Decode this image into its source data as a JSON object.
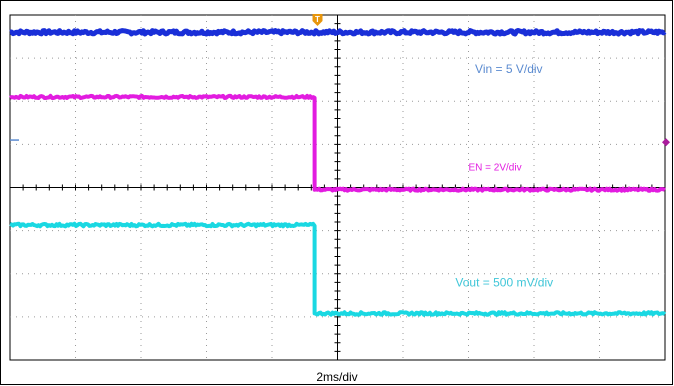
{
  "chart_data": {
    "type": "line",
    "grid": true,
    "grid_divisions": {
      "x": 10,
      "y": 8
    },
    "background": "#ffffff",
    "grid_color": "#9a9a9a",
    "axis_color": "#000000",
    "xlabel": "2ms/div",
    "x_scale_ms_per_div": 2,
    "x_range_div": [
      0,
      10
    ],
    "y_range_div": [
      0,
      8
    ],
    "trigger_marker": {
      "label": "T",
      "x_div": 5,
      "color": "#e8960c"
    },
    "channel_marker": {
      "color": "#aa1c9c",
      "y_div": 5.05
    },
    "series": [
      {
        "name": "Vin = 5 V/div",
        "color": "#1a2fd8",
        "scale": "5 V/div",
        "label_pos_div": {
          "x": 7.1,
          "y": 6.65
        },
        "label_color": "#5b8bd0",
        "points_div": [
          [
            0,
            7.6
          ],
          [
            10,
            7.6
          ]
        ],
        "noise": 0.04,
        "thickness": 5
      },
      {
        "name": "EN = 2V/div",
        "color": "#e21ce0",
        "scale": "2V/div",
        "label_pos_div": {
          "x": 7.0,
          "y": 4.4
        },
        "label_color": "#e21ce0",
        "points_div": [
          [
            0,
            6.1
          ],
          [
            4.65,
            6.1
          ],
          [
            4.65,
            3.95
          ],
          [
            10,
            3.95
          ]
        ],
        "noise": 0.025,
        "thickness": 4
      },
      {
        "name": "Vout = 500 mV/div",
        "color": "#1ad8e2",
        "scale": "500 mV/div",
        "label_pos_div": {
          "x": 6.8,
          "y": 1.7
        },
        "label_color": "#3fc6d8",
        "points_div": [
          [
            0,
            3.13
          ],
          [
            4.65,
            3.13
          ],
          [
            4.65,
            1.08
          ],
          [
            10,
            1.08
          ]
        ],
        "noise": 0.03,
        "thickness": 4
      }
    ]
  }
}
